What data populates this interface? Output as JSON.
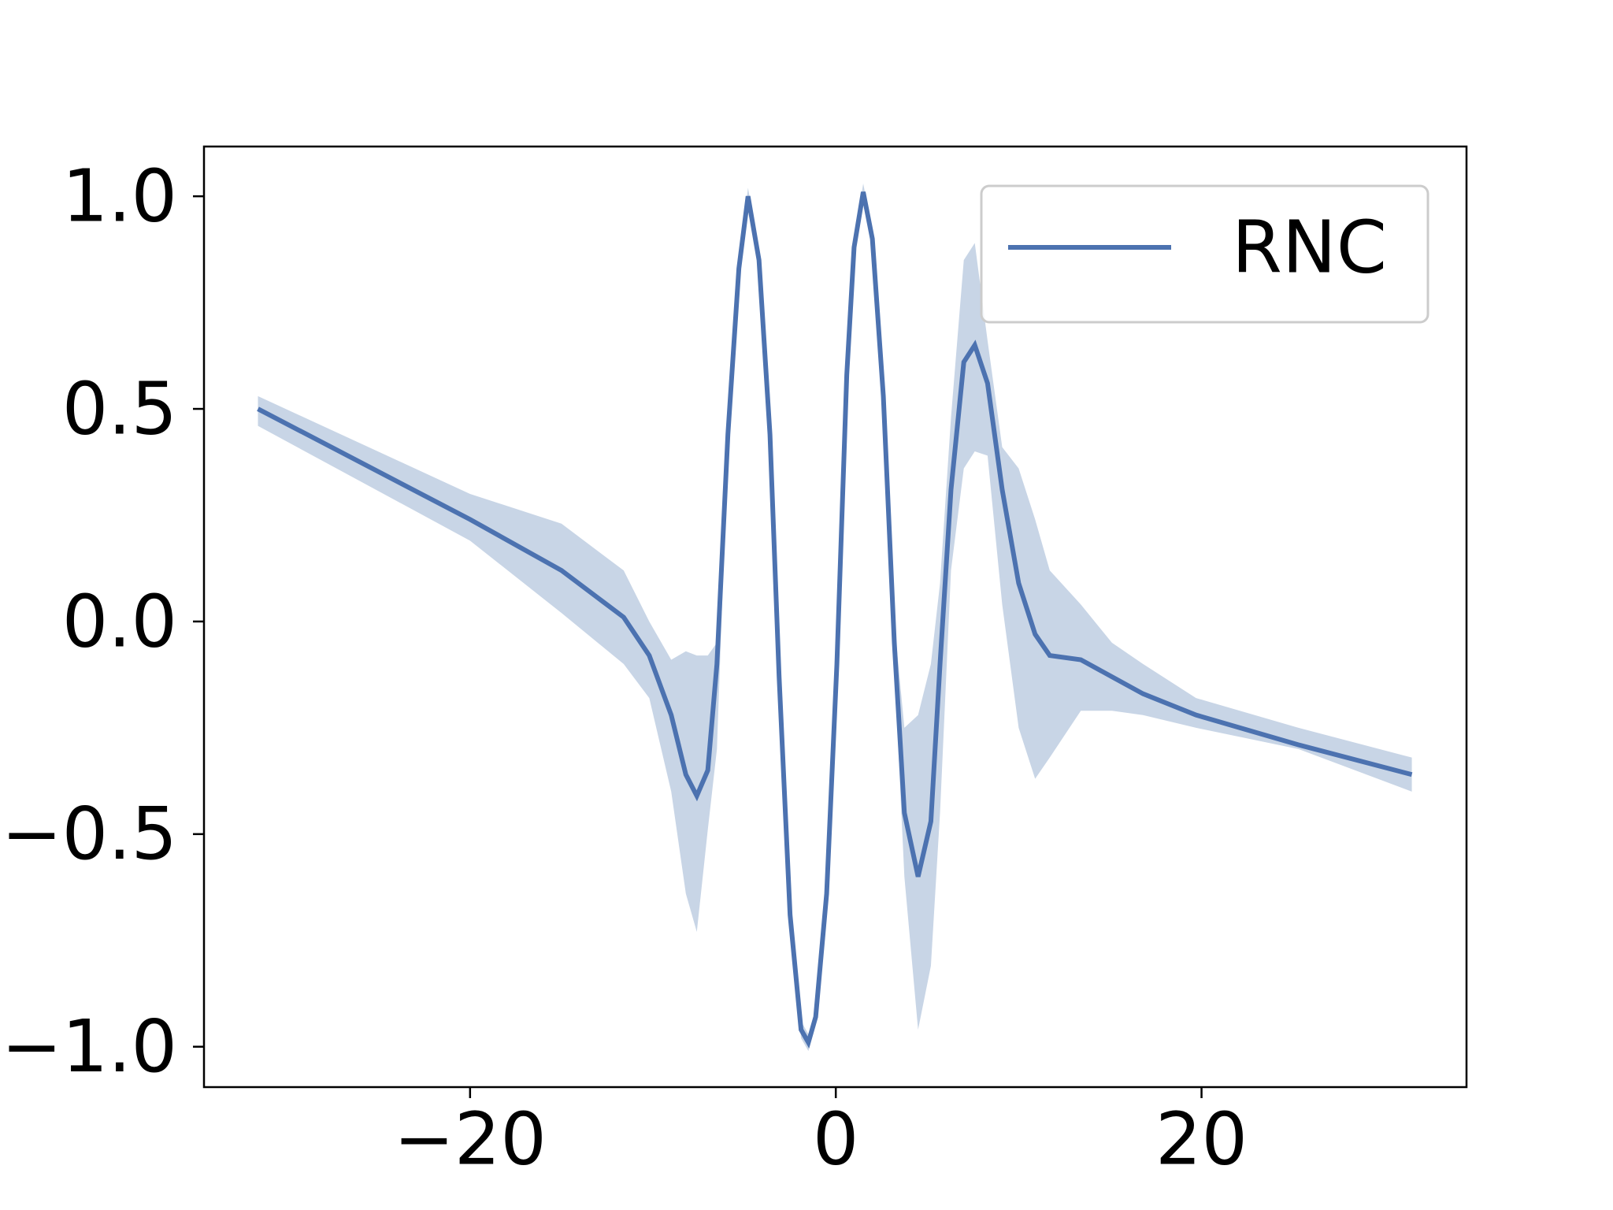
{
  "chart_data": {
    "type": "line",
    "x": [
      -31.6,
      -20.0,
      -15.0,
      -11.6,
      -10.2,
      -9.0,
      -8.2,
      -7.6,
      -7.0,
      -6.5,
      -5.9,
      -5.3,
      -4.8,
      -4.2,
      -3.6,
      -3.1,
      -2.5,
      -1.9,
      -1.5,
      -1.1,
      -0.5,
      0.06,
      0.6,
      1.0,
      1.5,
      2.0,
      2.6,
      3.2,
      3.75,
      4.5,
      5.2,
      5.7,
      6.3,
      7.0,
      7.6,
      8.3,
      9.1,
      10.0,
      10.9,
      11.7,
      13.4,
      15.1,
      16.8,
      19.7,
      25.3,
      31.5
    ],
    "series": [
      {
        "name": "RNC",
        "color": "#4c72b0",
        "band_color": "#c8d5e6",
        "values": [
          0.5,
          0.24,
          0.12,
          0.01,
          -0.08,
          -0.22,
          -0.36,
          -0.41,
          -0.35,
          -0.1,
          0.44,
          0.83,
          1.0,
          0.85,
          0.44,
          -0.13,
          -0.69,
          -0.96,
          -0.99,
          -0.93,
          -0.64,
          -0.1,
          0.58,
          0.88,
          1.01,
          0.9,
          0.53,
          -0.05,
          -0.45,
          -0.6,
          -0.47,
          -0.1,
          0.31,
          0.61,
          0.65,
          0.56,
          0.31,
          0.09,
          -0.03,
          -0.08,
          -0.09,
          -0.13,
          -0.17,
          -0.22,
          -0.29,
          -0.36
        ],
        "upper": [
          0.53,
          0.3,
          0.23,
          0.12,
          0.0,
          -0.09,
          -0.07,
          -0.08,
          -0.08,
          -0.05,
          0.46,
          0.85,
          1.02,
          0.87,
          0.46,
          -0.11,
          -0.67,
          -0.94,
          -0.97,
          -0.91,
          -0.62,
          -0.08,
          0.6,
          0.9,
          1.03,
          0.92,
          0.55,
          0.0,
          -0.25,
          -0.22,
          -0.1,
          0.09,
          0.48,
          0.85,
          0.89,
          0.66,
          0.41,
          0.36,
          0.24,
          0.12,
          0.04,
          -0.05,
          -0.1,
          -0.18,
          -0.25,
          -0.32
        ],
        "lower": [
          0.46,
          0.19,
          0.02,
          -0.1,
          -0.18,
          -0.4,
          -0.64,
          -0.73,
          -0.49,
          -0.3,
          0.42,
          0.81,
          0.98,
          0.83,
          0.42,
          -0.15,
          -0.71,
          -0.98,
          -1.01,
          -0.95,
          -0.66,
          -0.12,
          0.56,
          0.86,
          0.99,
          0.88,
          0.51,
          -0.1,
          -0.6,
          -0.96,
          -0.81,
          -0.45,
          0.12,
          0.36,
          0.4,
          0.39,
          0.04,
          -0.25,
          -0.37,
          -0.32,
          -0.21,
          -0.21,
          -0.22,
          -0.25,
          -0.3,
          -0.4
        ]
      }
    ],
    "xlim": [
      -34.55,
      34.49
    ],
    "ylim": [
      -1.095,
      1.117
    ],
    "xticks": [
      {
        "value": -20,
        "label": "−20"
      },
      0,
      20
    ],
    "yticks": [
      {
        "value": -1,
        "label": "−1.0"
      },
      {
        "value": -0.5,
        "label": "−0.5"
      },
      {
        "value": 0,
        "label": "0.0"
      },
      0.5,
      {
        "value": 1,
        "label": "1.0"
      }
    ],
    "legend": "upper right"
  }
}
